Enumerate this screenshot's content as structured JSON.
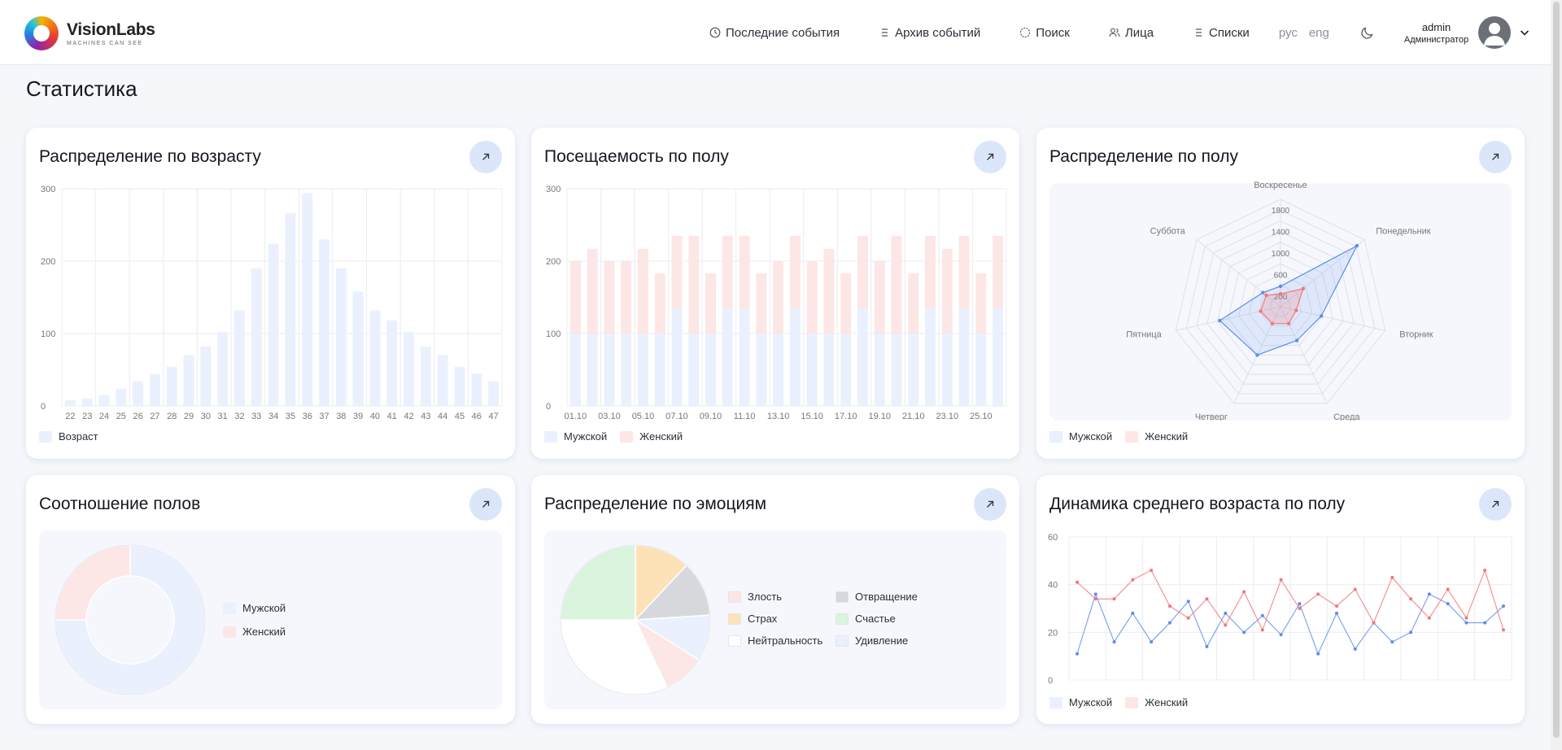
{
  "header": {
    "logo": {
      "name": "VisionLabs",
      "tagline": "MACHINES CAN SEE"
    },
    "nav": [
      {
        "label": "Последние события",
        "icon": "clock-icon"
      },
      {
        "label": "Архив событий",
        "icon": "list-icon"
      },
      {
        "label": "Поиск",
        "icon": "target-icon"
      },
      {
        "label": "Лица",
        "icon": "users-icon"
      },
      {
        "label": "Списки",
        "icon": "list-icon"
      }
    ],
    "lang": {
      "ru": "рус",
      "en": "eng"
    },
    "user": {
      "login": "admin",
      "role": "Администратор"
    }
  },
  "page": {
    "title": "Статистика"
  },
  "colors": {
    "male_fill": "#eaf0fd",
    "female_fill": "#fde6e6",
    "male_line": "#5b8def",
    "female_line": "#f07878",
    "accent": "#dbe6fb"
  },
  "cards": {
    "age": {
      "title": "Распределение по возрасту",
      "chart_data": {
        "type": "bar",
        "categories": [
          "22",
          "23",
          "24",
          "25",
          "26",
          "27",
          "28",
          "29",
          "30",
          "31",
          "32",
          "33",
          "34",
          "35",
          "36",
          "37",
          "38",
          "39",
          "40",
          "41",
          "42",
          "43",
          "44",
          "45",
          "46",
          "47"
        ],
        "series": [
          {
            "name": "Возраст",
            "values": [
              8,
              10,
              15,
              24,
              34,
              44,
              54,
              70,
              82,
              102,
              132,
              190,
              224,
              266,
              294,
              230,
              190,
              158,
              132,
              118,
              102,
              82,
              70,
              54,
              45,
              34
            ]
          }
        ],
        "yticks": [
          0,
          100,
          200,
          300
        ],
        "ylim": [
          0,
          300
        ]
      }
    },
    "attendance": {
      "title": "Посещаемость по полу",
      "chart_data": {
        "type": "bar",
        "stacked": true,
        "categories": [
          "01.10",
          "02.10",
          "03.10",
          "04.10",
          "05.10",
          "06.10",
          "07.10",
          "08.10",
          "09.10",
          "10.10",
          "11.10",
          "12.10",
          "13.10",
          "14.10",
          "15.10",
          "16.10",
          "17.10",
          "18.10",
          "19.10",
          "20.10",
          "21.10",
          "22.10",
          "23.10",
          "24.10",
          "25.10",
          "26.10"
        ],
        "x_tick_labels": [
          "01.10",
          "03.10",
          "05.10",
          "07.10",
          "09.10",
          "11.10",
          "13.10",
          "15.10",
          "17.10",
          "19.10",
          "21.10",
          "23.10",
          "25.10"
        ],
        "series": [
          {
            "name": "Мужской",
            "values": [
              100,
              100,
              100,
              100,
              100,
              100,
              135,
              100,
              100,
              135,
              135,
              100,
              100,
              135,
              100,
              100,
              100,
              135,
              100,
              100,
              100,
              135,
              100,
              135,
              100,
              135
            ]
          },
          {
            "name": "Женский",
            "values": [
              100,
              117,
              100,
              100,
              117,
              83,
              100,
              135,
              83,
              100,
              100,
              83,
              100,
              100,
              100,
              117,
              83,
              100,
              100,
              135,
              83,
              100,
              117,
              100,
              83,
              100
            ]
          }
        ],
        "yticks": [
          0,
          100,
          200,
          300
        ],
        "ylim": [
          0,
          300
        ]
      }
    },
    "gender_radar": {
      "title": "Распределение по полу",
      "chart_data": {
        "type": "radar",
        "axes": [
          "Воскресенье",
          "Понедельник",
          "Вторник",
          "Среда",
          "Четверг",
          "Пятница",
          "Суббота"
        ],
        "rticks": [
          200,
          600,
          1000,
          1400,
          1800
        ],
        "rmax": 2000,
        "series": [
          {
            "name": "Мужской",
            "values": [
              380,
              1820,
              780,
              700,
              1000,
              1160,
              420
            ]
          },
          {
            "name": "Женский",
            "values": [
              240,
              540,
              300,
              350,
              350,
              380,
              340
            ]
          }
        ]
      }
    },
    "ratio": {
      "title": "Соотношение полов",
      "chart_data": {
        "type": "pie",
        "donut": true,
        "labels": [
          "Мужской",
          "Женский"
        ],
        "values": [
          75,
          25
        ]
      }
    },
    "emotions": {
      "title": "Распределение по эмоциям",
      "chart_data": {
        "type": "pie",
        "labels": [
          "Злость",
          "Отвращение",
          "Страх",
          "Счастье",
          "Нейтральность",
          "Удивление"
        ],
        "values": [
          9,
          12,
          12,
          25,
          32,
          10
        ]
      }
    },
    "avg_age": {
      "title": "Динамика среднего возраста по полу",
      "chart_data": {
        "type": "line",
        "yticks": [
          0,
          20,
          40,
          60
        ],
        "ylim": [
          0,
          60
        ],
        "series": [
          {
            "name": "Мужской",
            "values": [
              11,
              36,
              16,
              28,
              16,
              24,
              33,
              14,
              28,
              20,
              27,
              19,
              32,
              11,
              28,
              13,
              24,
              16,
              20,
              36,
              32,
              24,
              24,
              31
            ]
          },
          {
            "name": "Женский",
            "values": [
              41,
              34,
              34,
              42,
              46,
              31,
              26,
              34,
              23,
              37,
              21,
              42,
              30,
              36,
              31,
              38,
              24,
              43,
              34,
              26,
              38,
              26,
              46,
              21
            ]
          }
        ]
      }
    }
  }
}
